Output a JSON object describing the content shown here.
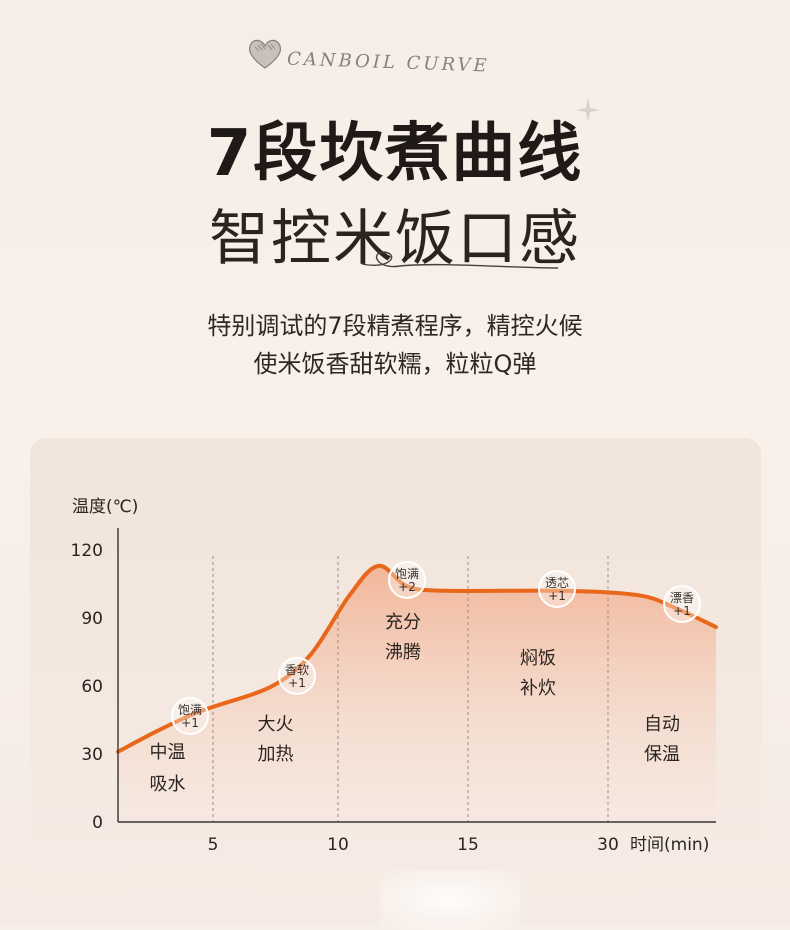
{
  "header": {
    "brand_text": "CANBOIL CURVE",
    "title_line1": "7段坎煮曲线",
    "title_line2": "智控米饭口感",
    "desc_line1": "特别调试的7段精煮程序，精控火候",
    "desc_line2": "使米饭香甜软糯，粒粒Q弹"
  },
  "colors": {
    "curve": "#e8671a",
    "fill_top": "#f2b89a",
    "axis": "#3a3330",
    "divider": "#9a8d86",
    "badge_ring": "#ffffff"
  },
  "chart_data": {
    "type": "area",
    "ylabel": "温度(℃)",
    "xlabel": "时间(min)",
    "ylim": [
      0,
      120
    ],
    "yticks": [
      "120",
      "90",
      "60",
      "30",
      "0"
    ],
    "xticks": [
      "5",
      "10",
      "15",
      "30"
    ],
    "x_positions": [
      0,
      2,
      4,
      5,
      8,
      10,
      12,
      13.5,
      15,
      17,
      23,
      27,
      29,
      31
    ],
    "temperatures": [
      31,
      40,
      48,
      51,
      60,
      74,
      100,
      113,
      104,
      102,
      102,
      100,
      94,
      86
    ],
    "stages": [
      {
        "line1": "中温",
        "line2": "吸水"
      },
      {
        "line1": "大火",
        "line2": "加热"
      },
      {
        "line1": "充分",
        "line2": "沸腾"
      },
      {
        "line1": "焖饭",
        "line2": "补炊"
      },
      {
        "line1": "自动",
        "line2": "保温"
      }
    ],
    "badges": [
      {
        "name": "饱满",
        "value": "+1"
      },
      {
        "name": "香软",
        "value": "+1"
      },
      {
        "name": "饱满",
        "value": "+2"
      },
      {
        "name": "透芯",
        "value": "+1"
      },
      {
        "name": "漂香",
        "value": "+1"
      }
    ]
  }
}
